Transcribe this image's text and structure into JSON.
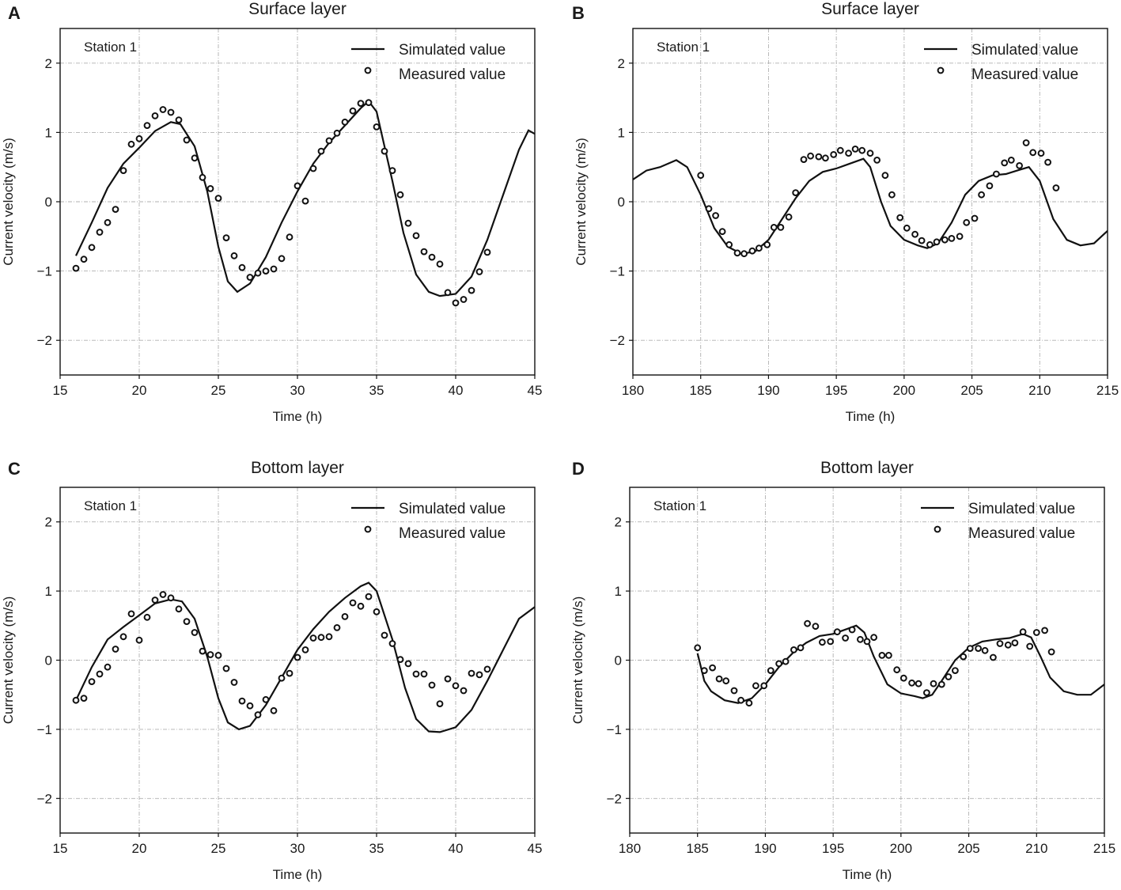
{
  "figure": {
    "legend": {
      "simulated": "Simulated value",
      "measured": "Measured value"
    },
    "xlabel": "Time (h)",
    "ylabel": "Current velocity (m/s)",
    "colors": {
      "line": "#111111",
      "grid": "#b0b0b0",
      "marker_fill": "#ffffff"
    }
  },
  "chart_data": [
    {
      "type": "line",
      "panel": "A",
      "title": "Surface layer",
      "annotation": "Station 1",
      "xlabel": "Time (h)",
      "ylabel": "Current velocity (m/s)",
      "xlim": [
        15,
        45
      ],
      "ylim": [
        -2.5,
        2.5
      ],
      "xticks": [
        15,
        20,
        25,
        30,
        35,
        40,
        45
      ],
      "yticks": [
        -2,
        -1,
        0,
        1,
        2
      ],
      "grid": true,
      "legend_position": "top-right",
      "series": [
        {
          "name": "Simulated value",
          "kind": "line",
          "x": [
            16,
            17,
            18,
            19,
            20,
            21,
            22,
            22.6,
            23.5,
            24.3,
            25,
            25.6,
            26.2,
            27,
            28,
            29,
            30,
            31,
            32,
            33,
            34,
            34.5,
            35,
            36,
            36.7,
            37.5,
            38.3,
            39,
            40,
            41,
            42,
            43,
            44,
            44.6,
            45
          ],
          "y": [
            -0.78,
            -0.3,
            0.2,
            0.55,
            0.78,
            1.02,
            1.15,
            1.12,
            0.8,
            0.15,
            -0.65,
            -1.15,
            -1.3,
            -1.18,
            -0.8,
            -0.3,
            0.15,
            0.55,
            0.85,
            1.1,
            1.35,
            1.45,
            1.3,
            0.3,
            -0.45,
            -1.05,
            -1.3,
            -1.36,
            -1.33,
            -1.08,
            -0.55,
            0.1,
            0.75,
            1.03,
            0.98
          ]
        },
        {
          "name": "Measured value",
          "kind": "scatter",
          "x": [
            16,
            16.5,
            17,
            17.5,
            18,
            18.5,
            19,
            19.5,
            20,
            20.5,
            21,
            21.5,
            22,
            22.5,
            23,
            23.5,
            24,
            24.5,
            25,
            25.5,
            26,
            26.5,
            27,
            27.5,
            28,
            28.5,
            29,
            29.5,
            30,
            30.5,
            31,
            31.5,
            32,
            32.5,
            33,
            33.5,
            34,
            34.5,
            35,
            35.5,
            36,
            36.5,
            37,
            37.5,
            38,
            38.5,
            39,
            39.5,
            40,
            40.5,
            41,
            41.5,
            42
          ],
          "y": [
            -0.96,
            -0.83,
            -0.66,
            -0.44,
            -0.3,
            -0.11,
            0.45,
            0.83,
            0.91,
            1.1,
            1.24,
            1.33,
            1.29,
            1.18,
            0.89,
            0.63,
            0.35,
            0.19,
            0.05,
            -0.52,
            -0.78,
            -0.95,
            -1.09,
            -1.03,
            -1.0,
            -0.97,
            -0.82,
            -0.51,
            0.23,
            0.01,
            0.48,
            0.73,
            0.88,
            0.99,
            1.15,
            1.31,
            1.42,
            1.43,
            1.08,
            0.73,
            0.45,
            0.1,
            -0.31,
            -0.49,
            -0.72,
            -0.8,
            -0.9,
            -1.31,
            -1.46,
            -1.41,
            -1.28,
            -1.01,
            -0.73
          ]
        }
      ]
    },
    {
      "type": "line",
      "panel": "B",
      "title": "Surface layer",
      "annotation": "Station 1",
      "xlabel": "Time (h)",
      "ylabel": "Current velocity (m/s)",
      "xlim": [
        180,
        215
      ],
      "ylim": [
        -2.5,
        2.5
      ],
      "xticks": [
        180,
        185,
        190,
        195,
        200,
        205,
        210,
        215
      ],
      "yticks": [
        -2,
        -1,
        0,
        1,
        2
      ],
      "grid": true,
      "legend_position": "top-right",
      "series": [
        {
          "name": "Simulated value",
          "kind": "line",
          "x": [
            180,
            181,
            182,
            183.2,
            184,
            185,
            186,
            187,
            188,
            189,
            190,
            191,
            192,
            193,
            194,
            195,
            196,
            197,
            197.5,
            198.3,
            199,
            200,
            201,
            201.7,
            202.5,
            203.5,
            204.5,
            205.5,
            206.5,
            207.5,
            208.5,
            209.2,
            210,
            211,
            212,
            213,
            214,
            215
          ],
          "y": [
            0.32,
            0.45,
            0.5,
            0.6,
            0.5,
            0.1,
            -0.38,
            -0.65,
            -0.75,
            -0.72,
            -0.55,
            -0.25,
            0.05,
            0.3,
            0.43,
            0.48,
            0.55,
            0.62,
            0.5,
            0.0,
            -0.35,
            -0.55,
            -0.63,
            -0.67,
            -0.6,
            -0.3,
            0.1,
            0.3,
            0.38,
            0.4,
            0.46,
            0.5,
            0.3,
            -0.25,
            -0.55,
            -0.63,
            -0.6,
            -0.42
          ]
        },
        {
          "name": "Measured value",
          "kind": "scatter",
          "x": [
            185,
            185.6,
            186.1,
            186.6,
            187.1,
            187.7,
            188.2,
            188.8,
            189.3,
            189.9,
            190.4,
            190.9,
            191.5,
            192,
            192.6,
            193.1,
            193.7,
            194.2,
            194.8,
            195.3,
            195.9,
            196.4,
            196.9,
            197.5,
            198,
            198.6,
            199.1,
            199.7,
            200.2,
            200.8,
            201.3,
            201.9,
            202.4,
            203,
            203.5,
            204.1,
            204.6,
            205.2,
            205.7,
            206.3,
            206.8,
            207.4,
            207.9,
            208.5,
            209,
            209.5,
            210.1,
            210.6,
            211.2
          ],
          "y": [
            0.38,
            -0.1,
            -0.2,
            -0.43,
            -0.62,
            -0.74,
            -0.75,
            -0.71,
            -0.67,
            -0.62,
            -0.37,
            -0.37,
            -0.22,
            0.13,
            0.61,
            0.66,
            0.65,
            0.63,
            0.68,
            0.74,
            0.7,
            0.76,
            0.74,
            0.7,
            0.6,
            0.38,
            0.1,
            -0.23,
            -0.38,
            -0.47,
            -0.56,
            -0.62,
            -0.58,
            -0.55,
            -0.53,
            -0.5,
            -0.3,
            -0.24,
            0.1,
            0.23,
            0.4,
            0.56,
            0.6,
            0.52,
            0.85,
            0.71,
            0.7,
            0.57,
            0.2
          ]
        }
      ]
    },
    {
      "type": "line",
      "panel": "C",
      "title": "Bottom layer",
      "annotation": "Station 1",
      "xlabel": "Time (h)",
      "ylabel": "Current velocity (m/s)",
      "xlim": [
        15,
        45
      ],
      "ylim": [
        -2.5,
        2.5
      ],
      "xticks": [
        15,
        20,
        25,
        30,
        35,
        40,
        45
      ],
      "yticks": [
        -2,
        -1,
        0,
        1,
        2
      ],
      "grid": true,
      "legend_position": "top-right",
      "series": [
        {
          "name": "Simulated value",
          "kind": "line",
          "x": [
            16,
            17,
            18,
            19,
            20,
            21,
            22,
            22.7,
            23.5,
            24.3,
            25,
            25.6,
            26.3,
            27,
            28,
            29,
            30,
            31,
            32,
            33,
            34,
            34.5,
            35,
            36,
            36.8,
            37.5,
            38.3,
            39,
            40,
            41,
            42,
            43,
            44,
            45
          ],
          "y": [
            -0.58,
            -0.1,
            0.3,
            0.48,
            0.65,
            0.82,
            0.88,
            0.85,
            0.6,
            0.05,
            -0.55,
            -0.9,
            -1.0,
            -0.95,
            -0.65,
            -0.25,
            0.15,
            0.45,
            0.7,
            0.9,
            1.07,
            1.12,
            1.0,
            0.3,
            -0.4,
            -0.85,
            -1.03,
            -1.04,
            -0.97,
            -0.72,
            -0.3,
            0.15,
            0.6,
            0.77
          ]
        },
        {
          "name": "Measured value",
          "kind": "scatter",
          "x": [
            16,
            16.5,
            17,
            17.5,
            18,
            18.5,
            19,
            19.5,
            20,
            20.5,
            21,
            21.5,
            22,
            22.5,
            23,
            23.5,
            24,
            24.5,
            25,
            25.5,
            26,
            26.5,
            27,
            27.5,
            28,
            28.5,
            29,
            29.5,
            30,
            30.5,
            31,
            31.5,
            32,
            32.5,
            33,
            33.5,
            34,
            34.5,
            35,
            35.5,
            36,
            36.5,
            37,
            37.5,
            38,
            38.5,
            39,
            39.5,
            40,
            40.5,
            41,
            41.5,
            42
          ],
          "y": [
            -0.58,
            -0.55,
            -0.31,
            -0.2,
            -0.1,
            0.16,
            0.34,
            0.67,
            0.29,
            0.62,
            0.87,
            0.95,
            0.9,
            0.74,
            0.56,
            0.4,
            0.13,
            0.08,
            0.07,
            -0.12,
            -0.32,
            -0.59,
            -0.66,
            -0.79,
            -0.57,
            -0.73,
            -0.26,
            -0.19,
            0.04,
            0.15,
            0.32,
            0.33,
            0.34,
            0.47,
            0.63,
            0.83,
            0.78,
            0.92,
            0.7,
            0.36,
            0.24,
            0.01,
            -0.05,
            -0.2,
            -0.2,
            -0.36,
            -0.63,
            -0.27,
            -0.37,
            -0.44,
            -0.19,
            -0.21,
            -0.13
          ]
        }
      ]
    },
    {
      "type": "line",
      "panel": "D",
      "title": "Bottom layer",
      "annotation": "Station 1",
      "xlabel": "Time (h)",
      "ylabel": "Current velocity (m/s)",
      "xlim": [
        180,
        215
      ],
      "ylim": [
        -2.5,
        2.5
      ],
      "xticks": [
        180,
        185,
        190,
        195,
        200,
        205,
        210,
        215
      ],
      "yticks": [
        -2,
        -1,
        0,
        1,
        2
      ],
      "grid": true,
      "legend_position": "top-right",
      "series": [
        {
          "name": "Simulated value",
          "kind": "line",
          "x": [
            185,
            185.5,
            186,
            187,
            188,
            189,
            190,
            191,
            192,
            193,
            194,
            195,
            196,
            196.7,
            197.3,
            198,
            199,
            200,
            201,
            201.6,
            202.3,
            203,
            204,
            205,
            206,
            207,
            208,
            209,
            209.6,
            210.3,
            211,
            212,
            213,
            214,
            215
          ],
          "y": [
            0.1,
            -0.3,
            -0.45,
            -0.58,
            -0.62,
            -0.55,
            -0.35,
            -0.1,
            0.1,
            0.25,
            0.35,
            0.38,
            0.45,
            0.5,
            0.4,
            0.05,
            -0.35,
            -0.48,
            -0.52,
            -0.55,
            -0.5,
            -0.3,
            0.0,
            0.18,
            0.27,
            0.3,
            0.32,
            0.38,
            0.33,
            0.05,
            -0.25,
            -0.45,
            -0.5,
            -0.5,
            -0.35
          ]
        },
        {
          "name": "Measured value",
          "kind": "scatter",
          "x": [
            185,
            185.5,
            186.1,
            186.6,
            187.1,
            187.7,
            188.2,
            188.8,
            189.3,
            189.9,
            190.4,
            191,
            191.5,
            192.1,
            192.6,
            193.1,
            193.7,
            194.2,
            194.8,
            195.3,
            195.9,
            196.4,
            197,
            197.5,
            198,
            198.6,
            199.1,
            199.7,
            200.2,
            200.8,
            201.3,
            201.9,
            202.4,
            203,
            203.5,
            204,
            204.6,
            205.1,
            205.7,
            206.2,
            206.8,
            207.3,
            207.9,
            208.4,
            209,
            209.5,
            210,
            210.6,
            211.1
          ],
          "y": [
            0.18,
            -0.15,
            -0.11,
            -0.27,
            -0.3,
            -0.44,
            -0.58,
            -0.62,
            -0.37,
            -0.37,
            -0.15,
            -0.05,
            -0.02,
            0.15,
            0.18,
            0.53,
            0.49,
            0.26,
            0.27,
            0.41,
            0.32,
            0.44,
            0.3,
            0.27,
            0.33,
            0.07,
            0.07,
            -0.14,
            -0.26,
            -0.33,
            -0.34,
            -0.47,
            -0.34,
            -0.35,
            -0.24,
            -0.15,
            0.05,
            0.17,
            0.17,
            0.14,
            0.04,
            0.24,
            0.22,
            0.25,
            0.41,
            0.2,
            0.4,
            0.43,
            0.12
          ]
        }
      ]
    }
  ]
}
